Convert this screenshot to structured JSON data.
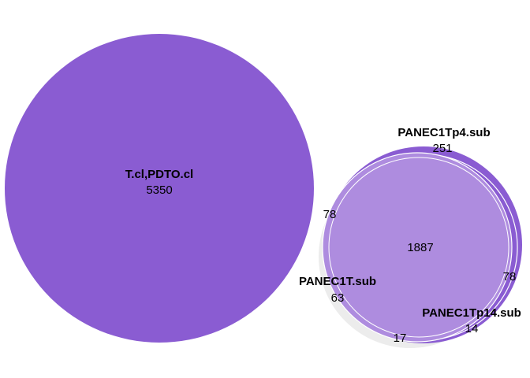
{
  "chart_data": {
    "type": "venn",
    "diagrams": [
      {
        "sets": [
          {
            "name": "T.cl,PDTO.cl",
            "only_count": "5350"
          }
        ]
      },
      {
        "sets": [
          {
            "name": "PANEC1Tp4.sub",
            "only_count": "251"
          },
          {
            "name": "PANEC1T.sub",
            "only_count": "63"
          },
          {
            "name": "PANEC1Tp14.sub",
            "only_count": "14"
          }
        ],
        "intersections": {
          "all_three": "1887",
          "p4_and_T_only": "78",
          "p4_and_p14_only": "78",
          "T_and_p14_only": "17"
        }
      }
    ],
    "colors": {
      "fill_dark": "#8a5cd2",
      "fill_light": "#ae8cdf",
      "shadow": "#ececec",
      "outline": "#ffffff"
    }
  }
}
